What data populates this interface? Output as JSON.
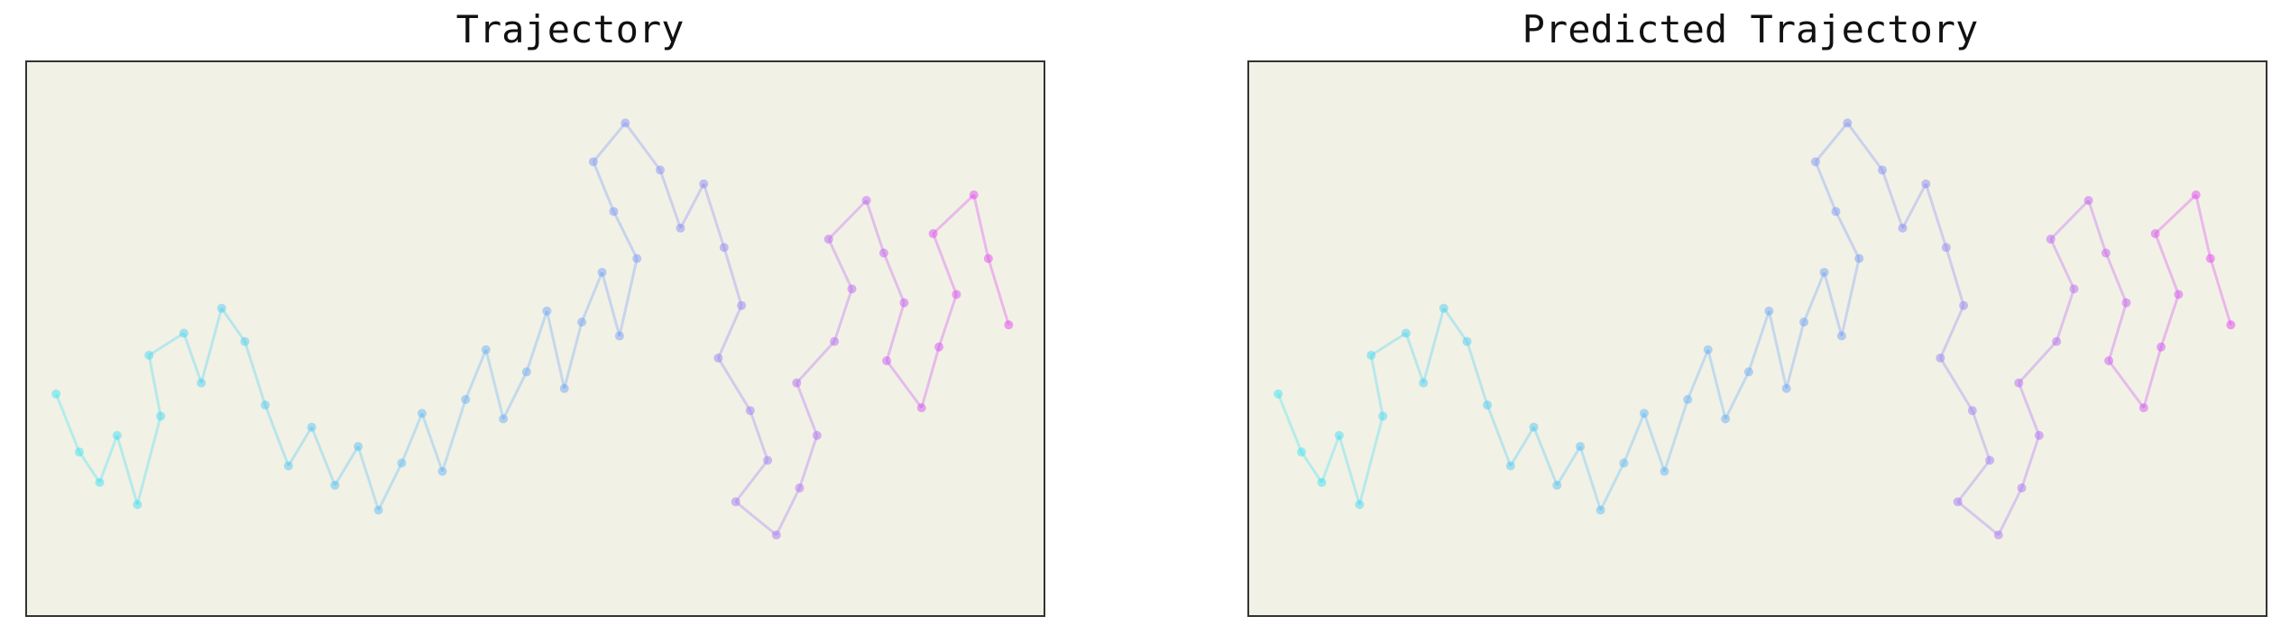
{
  "panels": [
    {
      "title": "Trajectory"
    },
    {
      "title": "Predicted Trajectory"
    }
  ],
  "colors": {
    "background": "#f2f1e6",
    "frame": "#333333",
    "start_color": "#3ee6f0",
    "mid_color": "#7a9bf5",
    "end_color": "#e646f0"
  },
  "chart_data": [
    {
      "type": "scatter",
      "title": "Trajectory",
      "xlabel": "",
      "ylabel": "",
      "grid": false,
      "axes_ticks": false,
      "description": "",
      "series": [
        {
          "values": [
            [
              -9.0,
              -1.0
            ],
            [
              -8.2,
              -3.1
            ],
            [
              -7.5,
              -4.2
            ],
            [
              -6.9,
              -2.5
            ],
            [
              -6.2,
              -5.0
            ],
            [
              -5.4,
              -1.8
            ],
            [
              -5.8,
              0.4
            ],
            [
              -4.6,
              1.2
            ],
            [
              -4.0,
              -0.6
            ],
            [
              -3.3,
              2.1
            ],
            [
              -2.5,
              0.9
            ],
            [
              -1.8,
              -1.4
            ],
            [
              -1.0,
              -3.6
            ],
            [
              -0.2,
              -2.2
            ],
            [
              0.6,
              -4.3
            ],
            [
              1.4,
              -2.9
            ],
            [
              2.1,
              -5.2
            ],
            [
              2.9,
              -3.5
            ],
            [
              3.6,
              -1.7
            ],
            [
              4.3,
              -3.8
            ],
            [
              5.1,
              -1.2
            ],
            [
              5.8,
              0.6
            ],
            [
              6.4,
              -1.9
            ],
            [
              7.2,
              -0.2
            ],
            [
              7.9,
              2.0
            ],
            [
              8.5,
              -0.8
            ],
            [
              9.1,
              1.6
            ],
            [
              9.8,
              3.4
            ],
            [
              10.4,
              1.1
            ],
            [
              11.0,
              3.9
            ],
            [
              10.2,
              5.6
            ],
            [
              9.5,
              7.4
            ],
            [
              10.6,
              8.8
            ],
            [
              11.8,
              7.1
            ],
            [
              12.5,
              5.0
            ],
            [
              13.3,
              6.6
            ],
            [
              14.0,
              4.3
            ],
            [
              14.6,
              2.2
            ],
            [
              13.8,
              0.3
            ],
            [
              14.9,
              -1.6
            ],
            [
              15.5,
              -3.4
            ],
            [
              14.4,
              -4.9
            ],
            [
              15.8,
              -6.1
            ],
            [
              16.6,
              -4.4
            ],
            [
              17.2,
              -2.5
            ],
            [
              16.5,
              -0.6
            ],
            [
              17.8,
              0.9
            ],
            [
              18.4,
              2.8
            ],
            [
              17.6,
              4.6
            ],
            [
              18.9,
              6.0
            ],
            [
              19.5,
              4.1
            ],
            [
              20.2,
              2.3
            ],
            [
              19.6,
              0.2
            ],
            [
              20.8,
              -1.5
            ],
            [
              21.4,
              0.7
            ],
            [
              22.0,
              2.6
            ],
            [
              21.2,
              4.8
            ],
            [
              22.6,
              6.2
            ],
            [
              23.1,
              3.9
            ],
            [
              23.8,
              1.5
            ]
          ]
        }
      ],
      "xlim": [
        -10,
        25
      ],
      "ylim": [
        -9,
        11
      ]
    },
    {
      "type": "scatter",
      "title": "Predicted Trajectory",
      "xlabel": "",
      "ylabel": "",
      "grid": false,
      "axes_ticks": false,
      "description": "",
      "series": [
        {
          "values": [
            [
              -9.0,
              -1.0
            ],
            [
              -8.2,
              -3.1
            ],
            [
              -7.5,
              -4.2
            ],
            [
              -6.9,
              -2.5
            ],
            [
              -6.2,
              -5.0
            ],
            [
              -5.4,
              -1.8
            ],
            [
              -5.8,
              0.4
            ],
            [
              -4.6,
              1.2
            ],
            [
              -4.0,
              -0.6
            ],
            [
              -3.3,
              2.1
            ],
            [
              -2.5,
              0.9
            ],
            [
              -1.8,
              -1.4
            ],
            [
              -1.0,
              -3.6
            ],
            [
              -0.2,
              -2.2
            ],
            [
              0.6,
              -4.3
            ],
            [
              1.4,
              -2.9
            ],
            [
              2.1,
              -5.2
            ],
            [
              2.9,
              -3.5
            ],
            [
              3.6,
              -1.7
            ],
            [
              4.3,
              -3.8
            ],
            [
              5.1,
              -1.2
            ],
            [
              5.8,
              0.6
            ],
            [
              6.4,
              -1.9
            ],
            [
              7.2,
              -0.2
            ],
            [
              7.9,
              2.0
            ],
            [
              8.5,
              -0.8
            ],
            [
              9.1,
              1.6
            ],
            [
              9.8,
              3.4
            ],
            [
              10.4,
              1.1
            ],
            [
              11.0,
              3.9
            ],
            [
              10.2,
              5.6
            ],
            [
              9.5,
              7.4
            ],
            [
              10.6,
              8.8
            ],
            [
              11.8,
              7.1
            ],
            [
              12.5,
              5.0
            ],
            [
              13.3,
              6.6
            ],
            [
              14.0,
              4.3
            ],
            [
              14.6,
              2.2
            ],
            [
              13.8,
              0.3
            ],
            [
              14.9,
              -1.6
            ],
            [
              15.5,
              -3.4
            ],
            [
              14.4,
              -4.9
            ],
            [
              15.8,
              -6.1
            ],
            [
              16.6,
              -4.4
            ],
            [
              17.2,
              -2.5
            ],
            [
              16.5,
              -0.6
            ],
            [
              17.8,
              0.9
            ],
            [
              18.4,
              2.8
            ],
            [
              17.6,
              4.6
            ],
            [
              18.9,
              6.0
            ],
            [
              19.5,
              4.1
            ],
            [
              20.2,
              2.3
            ],
            [
              19.6,
              0.2
            ],
            [
              20.8,
              -1.5
            ],
            [
              21.4,
              0.7
            ],
            [
              22.0,
              2.6
            ],
            [
              21.2,
              4.8
            ],
            [
              22.6,
              6.2
            ],
            [
              23.1,
              3.9
            ],
            [
              23.8,
              1.5
            ]
          ]
        }
      ],
      "xlim": [
        -10,
        25
      ],
      "ylim": [
        -9,
        11
      ]
    }
  ]
}
